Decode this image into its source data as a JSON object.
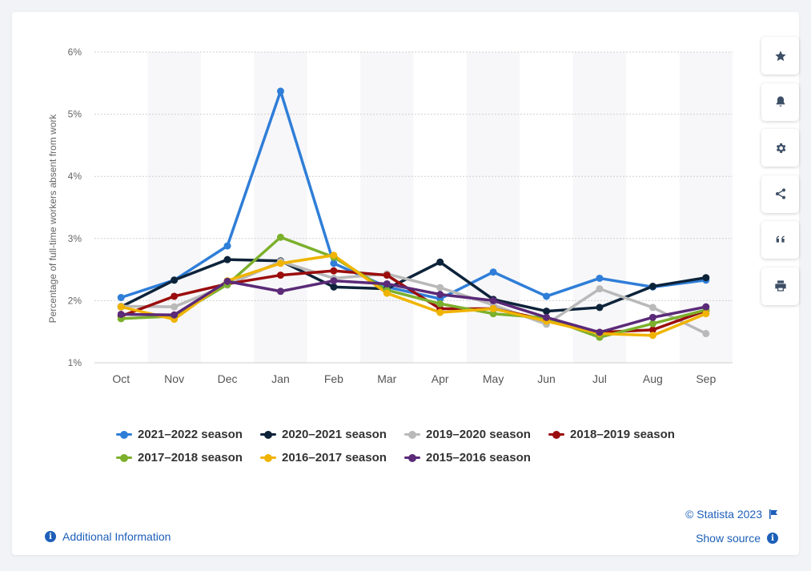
{
  "chart_data": {
    "type": "line",
    "categories": [
      "Oct",
      "Nov",
      "Dec",
      "Jan",
      "Feb",
      "Mar",
      "Apr",
      "May",
      "Jun",
      "Jul",
      "Aug",
      "Sep"
    ],
    "ylabel": "Percentage of full-time workers absent from work",
    "ylim": [
      1,
      6
    ],
    "yticks": [
      1,
      2,
      3,
      4,
      5,
      6
    ],
    "ytick_labels": [
      "1%",
      "2%",
      "3%",
      "4%",
      "5%",
      "6%"
    ],
    "grid": true,
    "legend_position": "bottom",
    "series": [
      {
        "name": "2021–2022 season",
        "color": "#2f7ed8",
        "values": [
          2.05,
          2.33,
          2.88,
          5.37,
          2.6,
          2.22,
          2.03,
          2.46,
          2.07,
          2.36,
          2.22,
          2.33
        ]
      },
      {
        "name": "2020–2021 season",
        "color": "#0d233a",
        "values": [
          1.9,
          2.33,
          2.66,
          2.64,
          2.22,
          2.19,
          2.62,
          2.02,
          1.83,
          1.89,
          2.23,
          2.37
        ]
      },
      {
        "name": "2019–2020 season",
        "color": "#b9b9b9",
        "values": [
          1.91,
          1.9,
          2.25,
          2.63,
          2.36,
          2.43,
          2.21,
          1.93,
          1.62,
          2.19,
          1.89,
          1.47
        ]
      },
      {
        "name": "2018–2019 season",
        "color": "#9b0d0d",
        "values": [
          1.75,
          2.07,
          2.27,
          2.41,
          2.48,
          2.41,
          1.87,
          1.87,
          1.69,
          1.49,
          1.53,
          1.84
        ]
      },
      {
        "name": "2017–2018 season",
        "color": "#7cb02c",
        "values": [
          1.71,
          1.75,
          2.26,
          3.02,
          2.7,
          2.17,
          1.95,
          1.79,
          1.72,
          1.41,
          1.63,
          1.85
        ]
      },
      {
        "name": "2016–2017 season",
        "color": "#f0b400",
        "values": [
          1.9,
          1.7,
          2.32,
          2.6,
          2.73,
          2.12,
          1.81,
          1.87,
          1.67,
          1.47,
          1.44,
          1.79
        ]
      },
      {
        "name": "2015–2016 season",
        "color": "#5b2a78",
        "values": [
          1.78,
          1.77,
          2.31,
          2.15,
          2.32,
          2.27,
          2.1,
          2.0,
          1.73,
          1.49,
          1.73,
          1.9
        ]
      }
    ]
  },
  "legend": {
    "items": [
      {
        "label": "2021–2022 season",
        "color": "#2f7ed8"
      },
      {
        "label": "2020–2021 season",
        "color": "#0d233a"
      },
      {
        "label": "2019–2020 season",
        "color": "#b9b9b9"
      },
      {
        "label": "2018–2019 season",
        "color": "#9b0d0d"
      },
      {
        "label": "2017–2018 season",
        "color": "#7cb02c"
      },
      {
        "label": "2016–2017 season",
        "color": "#f0b400"
      },
      {
        "label": "2015–2016 season",
        "color": "#5b2a78"
      }
    ]
  },
  "toolbar": {
    "buttons": [
      {
        "name": "favorite",
        "icon": "star-icon"
      },
      {
        "name": "notification",
        "icon": "bell-icon"
      },
      {
        "name": "settings",
        "icon": "gear-icon"
      },
      {
        "name": "share",
        "icon": "share-icon"
      },
      {
        "name": "cite",
        "icon": "quote-icon"
      },
      {
        "name": "print",
        "icon": "print-icon"
      }
    ]
  },
  "footer": {
    "credit": "© Statista 2023",
    "show_source": "Show source",
    "additional_info": "Additional Information",
    "info_glyph": "i"
  }
}
